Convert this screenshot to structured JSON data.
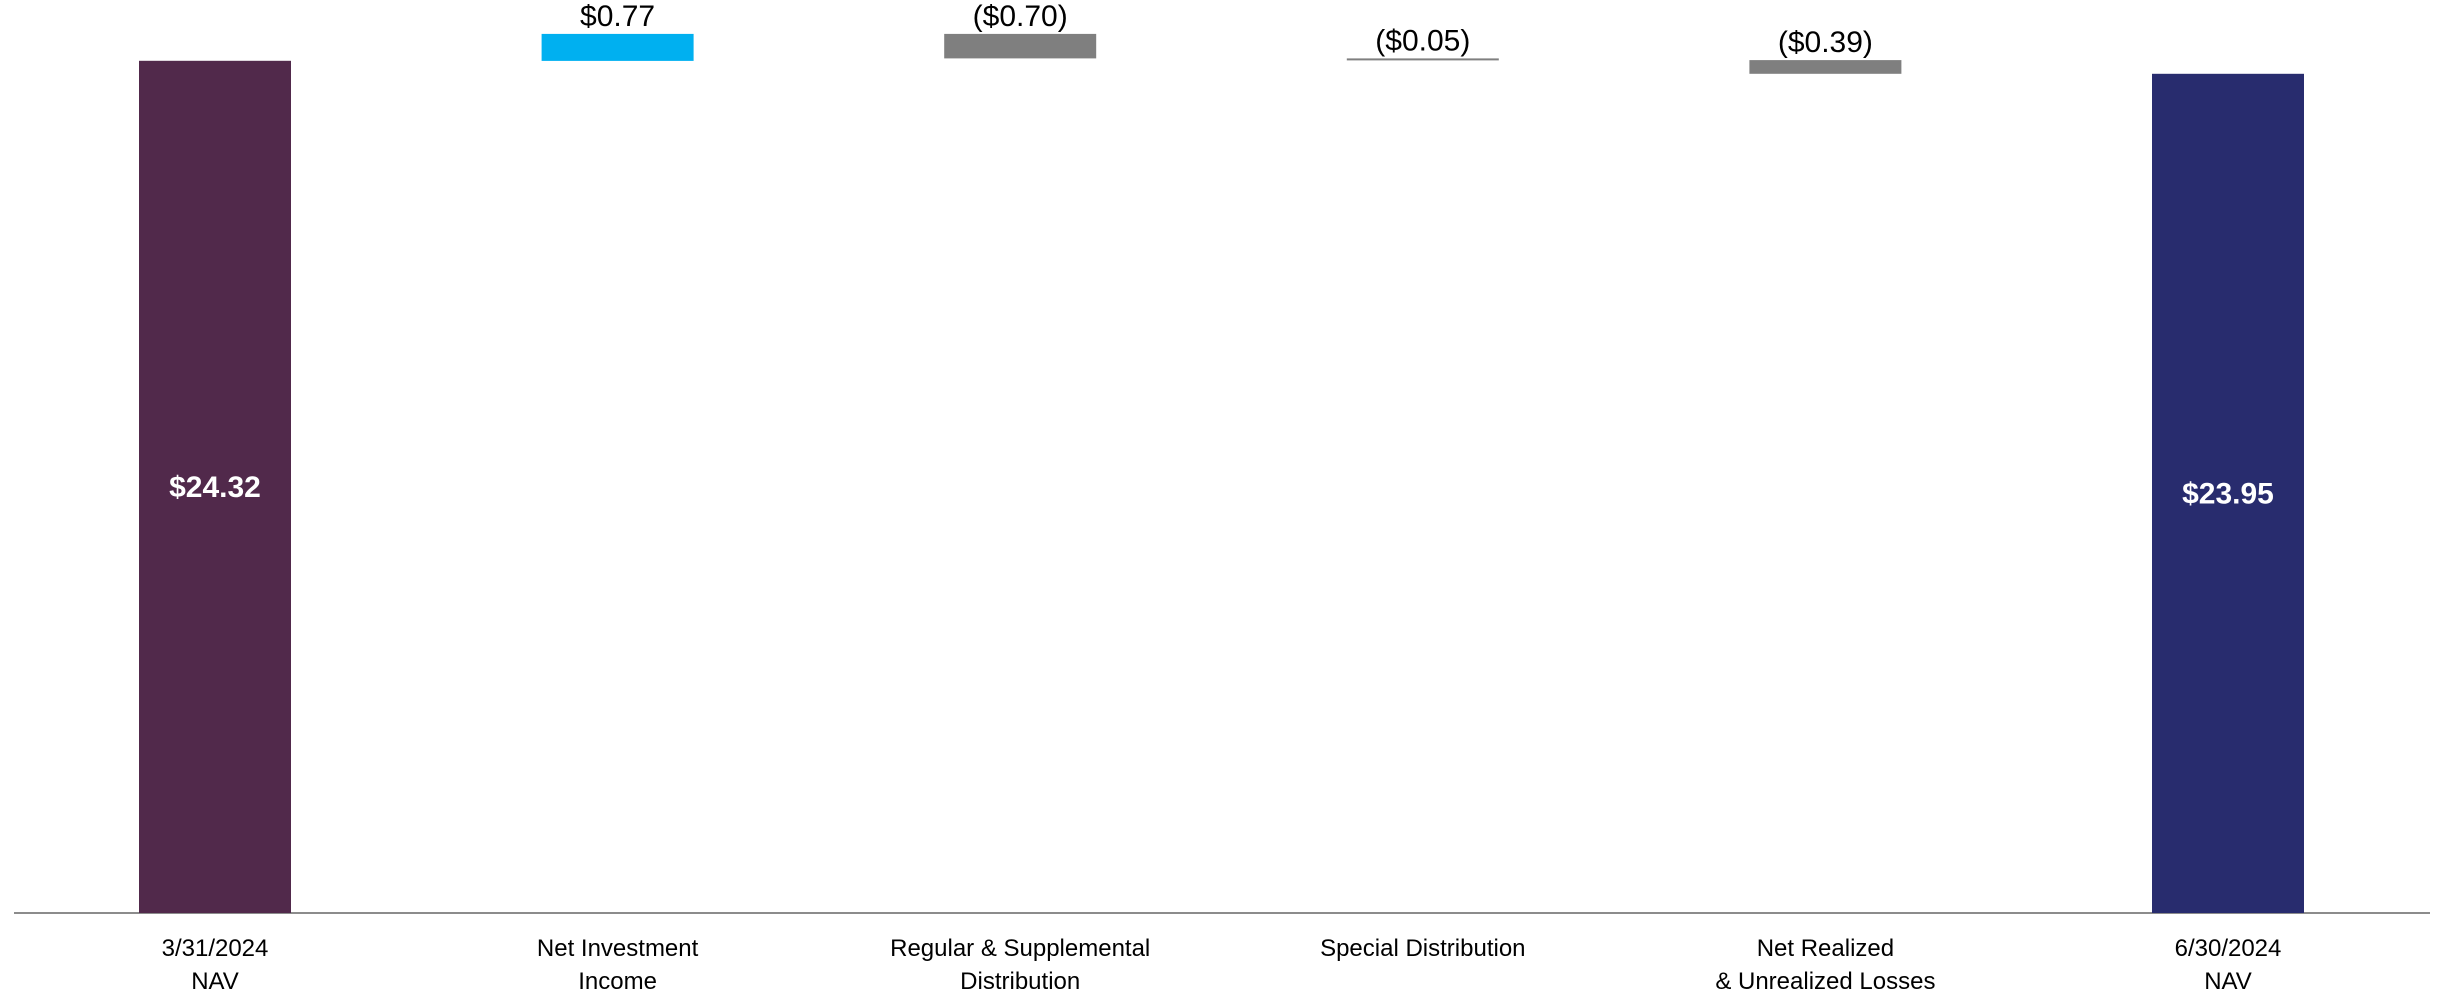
{
  "chart_data": {
    "type": "bar",
    "subtype": "waterfall",
    "title": "",
    "xlabel": "",
    "ylabel": "",
    "ylim": [
      0,
      25.2
    ],
    "grid": false,
    "legend": "none",
    "categories": [
      [
        "3/31/2024",
        "NAV"
      ],
      [
        "Net Investment",
        "Income"
      ],
      [
        "Regular & Supplemental",
        "Distribution"
      ],
      [
        "Special Distribution"
      ],
      [
        "Net Realized",
        "& Unrealized Losses"
      ],
      [
        "6/30/2024",
        "NAV"
      ]
    ],
    "values": [
      24.32,
      0.77,
      -0.7,
      -0.05,
      -0.39,
      23.95
    ],
    "kinds": [
      "total",
      "change",
      "change",
      "change",
      "change",
      "total"
    ],
    "labels": [
      "$24.32",
      "$0.77",
      "($0.70)",
      "($0.05)",
      "($0.39)",
      "$23.95"
    ],
    "colors": [
      "#51294B",
      "#00B0F0",
      "#7F7F7F",
      "#7F7F7F",
      "#7F7F7F",
      "#282C6E"
    ]
  }
}
